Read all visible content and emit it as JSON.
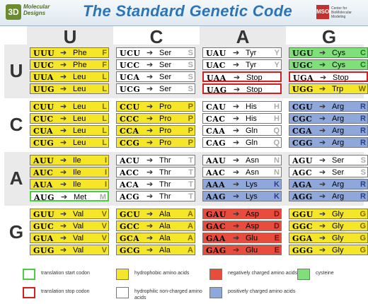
{
  "header": {
    "logo_left_mark": "3D",
    "logo_left_text": "Molecular Designs",
    "title": "The Standard Genetic Code",
    "logo_right_mark": "MSOE",
    "logo_right_text": "Center for BioMolecular Modeling"
  },
  "bases": [
    "U",
    "C",
    "A",
    "G"
  ],
  "colors": {
    "hydrophobic": "#f5e629",
    "hydrophilic": "#ffffff",
    "negative": "#e84c3d",
    "positive": "#8fa8dc",
    "cysteine": "#7fe07a",
    "start_border": "#4ccf3f",
    "stop_border": "#d22020"
  },
  "codon_table": [
    [
      [
        {
          "codon": "UUU",
          "aa": "Phe",
          "letter": "F",
          "type": "hydrophobic"
        },
        {
          "codon": "UUC",
          "aa": "Phe",
          "letter": "F",
          "type": "hydrophobic"
        },
        {
          "codon": "UUA",
          "aa": "Leu",
          "letter": "L",
          "type": "hydrophobic"
        },
        {
          "codon": "UUG",
          "aa": "Leu",
          "letter": "L",
          "type": "hydrophobic"
        }
      ],
      [
        {
          "codon": "UCU",
          "aa": "Ser",
          "letter": "S",
          "type": "hydrophilic"
        },
        {
          "codon": "UCC",
          "aa": "Ser",
          "letter": "S",
          "type": "hydrophilic"
        },
        {
          "codon": "UCA",
          "aa": "Ser",
          "letter": "S",
          "type": "hydrophilic"
        },
        {
          "codon": "UCG",
          "aa": "Ser",
          "letter": "S",
          "type": "hydrophilic"
        }
      ],
      [
        {
          "codon": "UAU",
          "aa": "Tyr",
          "letter": "Y",
          "type": "hydrophilic"
        },
        {
          "codon": "UAC",
          "aa": "Tyr",
          "letter": "Y",
          "type": "hydrophilic"
        },
        {
          "codon": "UAA",
          "aa": "Stop",
          "letter": "",
          "type": "stop"
        },
        {
          "codon": "UAG",
          "aa": "Stop",
          "letter": "",
          "type": "stop"
        }
      ],
      [
        {
          "codon": "UGU",
          "aa": "Cys",
          "letter": "C",
          "type": "cysteine"
        },
        {
          "codon": "UGC",
          "aa": "Cys",
          "letter": "C",
          "type": "cysteine"
        },
        {
          "codon": "UGA",
          "aa": "Stop",
          "letter": "",
          "type": "stop"
        },
        {
          "codon": "UGG",
          "aa": "Trp",
          "letter": "W",
          "type": "hydrophobic"
        }
      ]
    ],
    [
      [
        {
          "codon": "CUU",
          "aa": "Leu",
          "letter": "L",
          "type": "hydrophobic"
        },
        {
          "codon": "CUC",
          "aa": "Leu",
          "letter": "L",
          "type": "hydrophobic"
        },
        {
          "codon": "CUA",
          "aa": "Leu",
          "letter": "L",
          "type": "hydrophobic"
        },
        {
          "codon": "CUG",
          "aa": "Leu",
          "letter": "L",
          "type": "hydrophobic"
        }
      ],
      [
        {
          "codon": "CCU",
          "aa": "Pro",
          "letter": "P",
          "type": "hydrophobic"
        },
        {
          "codon": "CCC",
          "aa": "Pro",
          "letter": "P",
          "type": "hydrophobic"
        },
        {
          "codon": "CCA",
          "aa": "Pro",
          "letter": "P",
          "type": "hydrophobic"
        },
        {
          "codon": "CCG",
          "aa": "Pro",
          "letter": "P",
          "type": "hydrophobic"
        }
      ],
      [
        {
          "codon": "CAU",
          "aa": "His",
          "letter": "H",
          "type": "hydrophilic"
        },
        {
          "codon": "CAC",
          "aa": "His",
          "letter": "H",
          "type": "hydrophilic"
        },
        {
          "codon": "CAA",
          "aa": "Gln",
          "letter": "Q",
          "type": "hydrophilic"
        },
        {
          "codon": "CAG",
          "aa": "Gln",
          "letter": "Q",
          "type": "hydrophilic"
        }
      ],
      [
        {
          "codon": "CGU",
          "aa": "Arg",
          "letter": "R",
          "type": "positive"
        },
        {
          "codon": "CGC",
          "aa": "Arg",
          "letter": "R",
          "type": "positive"
        },
        {
          "codon": "CGA",
          "aa": "Arg",
          "letter": "R",
          "type": "positive"
        },
        {
          "codon": "CGG",
          "aa": "Arg",
          "letter": "R",
          "type": "positive"
        }
      ]
    ],
    [
      [
        {
          "codon": "AUU",
          "aa": "Ile",
          "letter": "I",
          "type": "hydrophobic"
        },
        {
          "codon": "AUC",
          "aa": "Ile",
          "letter": "I",
          "type": "hydrophobic"
        },
        {
          "codon": "AUA",
          "aa": "Ile",
          "letter": "I",
          "type": "hydrophobic"
        },
        {
          "codon": "AUG",
          "aa": "Met",
          "letter": "M",
          "type": "start"
        }
      ],
      [
        {
          "codon": "ACU",
          "aa": "Thr",
          "letter": "T",
          "type": "hydrophilic"
        },
        {
          "codon": "ACC",
          "aa": "Thr",
          "letter": "T",
          "type": "hydrophilic"
        },
        {
          "codon": "ACA",
          "aa": "Thr",
          "letter": "T",
          "type": "hydrophilic"
        },
        {
          "codon": "ACG",
          "aa": "Thr",
          "letter": "T",
          "type": "hydrophilic"
        }
      ],
      [
        {
          "codon": "AAU",
          "aa": "Asn",
          "letter": "N",
          "type": "hydrophilic"
        },
        {
          "codon": "AAC",
          "aa": "Asn",
          "letter": "N",
          "type": "hydrophilic"
        },
        {
          "codon": "AAA",
          "aa": "Lys",
          "letter": "K",
          "type": "positive"
        },
        {
          "codon": "AAG",
          "aa": "Lys",
          "letter": "K",
          "type": "positive"
        }
      ],
      [
        {
          "codon": "AGU",
          "aa": "Ser",
          "letter": "S",
          "type": "hydrophilic"
        },
        {
          "codon": "AGC",
          "aa": "Ser",
          "letter": "S",
          "type": "hydrophilic"
        },
        {
          "codon": "AGA",
          "aa": "Arg",
          "letter": "R",
          "type": "positive"
        },
        {
          "codon": "AGG",
          "aa": "Arg",
          "letter": "R",
          "type": "positive"
        }
      ]
    ],
    [
      [
        {
          "codon": "GUU",
          "aa": "Val",
          "letter": "V",
          "type": "hydrophobic"
        },
        {
          "codon": "GUC",
          "aa": "Val",
          "letter": "V",
          "type": "hydrophobic"
        },
        {
          "codon": "GUA",
          "aa": "Val",
          "letter": "V",
          "type": "hydrophobic"
        },
        {
          "codon": "GUG",
          "aa": "Val",
          "letter": "V",
          "type": "hydrophobic"
        }
      ],
      [
        {
          "codon": "GCU",
          "aa": "Ala",
          "letter": "A",
          "type": "hydrophobic"
        },
        {
          "codon": "GCC",
          "aa": "Ala",
          "letter": "A",
          "type": "hydrophobic"
        },
        {
          "codon": "GCA",
          "aa": "Ala",
          "letter": "A",
          "type": "hydrophobic"
        },
        {
          "codon": "GCG",
          "aa": "Ala",
          "letter": "A",
          "type": "hydrophobic"
        }
      ],
      [
        {
          "codon": "GAU",
          "aa": "Asp",
          "letter": "D",
          "type": "negative"
        },
        {
          "codon": "GAC",
          "aa": "Asp",
          "letter": "D",
          "type": "negative"
        },
        {
          "codon": "GAA",
          "aa": "Glu",
          "letter": "E",
          "type": "negative"
        },
        {
          "codon": "GAG",
          "aa": "Glu",
          "letter": "E",
          "type": "negative"
        }
      ],
      [
        {
          "codon": "GGU",
          "aa": "Gly",
          "letter": "G",
          "type": "hydrophobic"
        },
        {
          "codon": "GGC",
          "aa": "Gly",
          "letter": "G",
          "type": "hydrophobic"
        },
        {
          "codon": "GGA",
          "aa": "Gly",
          "letter": "G",
          "type": "hydrophobic"
        },
        {
          "codon": "GGG",
          "aa": "Gly",
          "letter": "G",
          "type": "hydrophobic"
        }
      ]
    ]
  ],
  "legend": [
    {
      "key": "start",
      "label": "translation start codon"
    },
    {
      "key": "hydrophobic",
      "label": "hydrophobic amino acids"
    },
    {
      "key": "negative",
      "label": "negatively charged amino acids"
    },
    {
      "key": "cysteine",
      "label": "cysteine"
    },
    {
      "key": "stop",
      "label": "translation stop codon"
    },
    {
      "key": "hydrophilic",
      "label": "hydrophilic non-charged amino acids"
    },
    {
      "key": "positive",
      "label": "positively charged amino acids"
    }
  ]
}
